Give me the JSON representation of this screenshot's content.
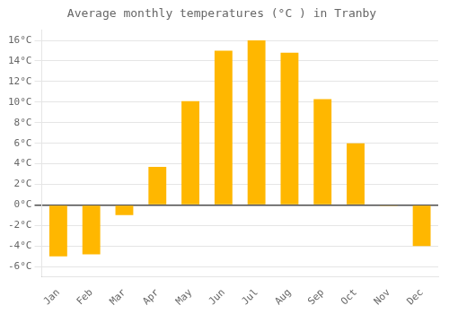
{
  "chart_data": {
    "type": "bar",
    "title": "Average monthly temperatures (°C ) in Tranby",
    "categories": [
      "Jan",
      "Feb",
      "Mar",
      "Apr",
      "May",
      "Jun",
      "Jul",
      "Aug",
      "Sep",
      "Oct",
      "Nov",
      "Dec"
    ],
    "values": [
      -5.0,
      -4.8,
      -1.0,
      3.7,
      10.1,
      15.0,
      16.0,
      14.8,
      10.3,
      6.0,
      -0.1,
      -4.0
    ],
    "color": "#FFB700",
    "ylim": [
      -7,
      17
    ],
    "yticks": [
      {
        "value": -6,
        "label": "-6°C"
      },
      {
        "value": -4,
        "label": "-4°C"
      },
      {
        "value": -2,
        "label": "-2°C"
      },
      {
        "value": 0,
        "label": "0°C"
      },
      {
        "value": 2,
        "label": "2°C"
      },
      {
        "value": 4,
        "label": "4°C"
      },
      {
        "value": 6,
        "label": "6°C"
      },
      {
        "value": 8,
        "label": "8°C"
      },
      {
        "value": 10,
        "label": "10°C"
      },
      {
        "value": 12,
        "label": "12°C"
      },
      {
        "value": 14,
        "label": "14°C"
      },
      {
        "value": 16,
        "label": "16°C"
      }
    ],
    "grid": true
  }
}
